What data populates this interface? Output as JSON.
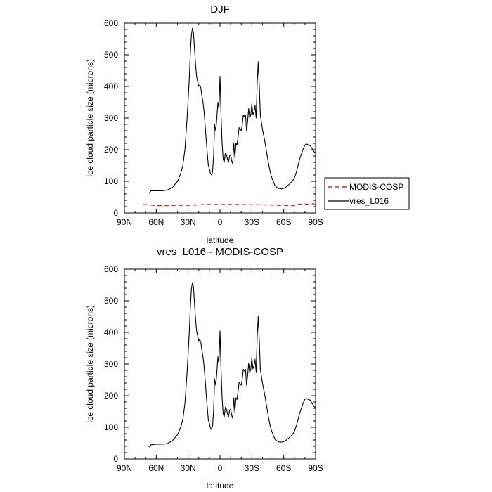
{
  "chart_data": [
    {
      "type": "line",
      "title": "DJF",
      "xlabel": "latitude",
      "ylabel": "Ice cloud particle size (microns)",
      "xlim": [
        -90,
        90
      ],
      "ylim": [
        0,
        600
      ],
      "x_ticks": [
        -90,
        -60,
        -30,
        0,
        30,
        60,
        90
      ],
      "x_tick_labels": [
        "90N",
        "60N",
        "30N",
        "0",
        "30S",
        "60S",
        "90S"
      ],
      "y_ticks": [
        0,
        100,
        200,
        300,
        400,
        500,
        600
      ],
      "y_tick_labels": [
        "0",
        "100",
        "200",
        "300",
        "400",
        "500",
        "600"
      ],
      "legend": {
        "placement": "right"
      },
      "grid": false,
      "series": [
        {
          "name": "MODIS-COSP",
          "color": "#e8251f",
          "dash": "dashed",
          "x": [
            -72,
            -65,
            -60,
            -55,
            -50,
            -45,
            -40,
            -35,
            -30,
            -25,
            -20,
            -15,
            -10,
            -5,
            0,
            5,
            10,
            15,
            20,
            25,
            30,
            35,
            40,
            45,
            50,
            55,
            60,
            65,
            70,
            73,
            76,
            79,
            82,
            85,
            88,
            90
          ],
          "y": [
            27,
            25,
            23,
            23,
            23,
            24,
            24,
            24,
            24,
            25,
            25,
            27,
            27,
            27,
            27,
            27,
            27,
            27,
            27,
            26,
            26,
            26,
            26,
            25,
            25,
            24,
            24,
            23,
            23,
            27,
            28,
            28,
            28,
            27,
            30,
            25
          ]
        },
        {
          "name": "vres_L016",
          "color": "#000000",
          "dash": "solid",
          "x": [
            -67,
            -65,
            -60,
            -55,
            -50,
            -45,
            -40,
            -37,
            -35,
            -33,
            -31,
            -29,
            -28,
            -27,
            -26,
            -25,
            -24,
            -23,
            -22,
            -21,
            -20,
            -19,
            -18,
            -17,
            -16,
            -15,
            -14,
            -13,
            -12,
            -11,
            -10,
            -9,
            -8,
            -7,
            -6,
            -5,
            -4,
            -3,
            -2,
            -1,
            0,
            1,
            2,
            3,
            4,
            5,
            6,
            7,
            8,
            9,
            10,
            11,
            12,
            13,
            14,
            15,
            16,
            17,
            18,
            19,
            20,
            21,
            22,
            23,
            24,
            25,
            26,
            27,
            28,
            29,
            30,
            31,
            32,
            33,
            34,
            35,
            36,
            37,
            38,
            40,
            42,
            44,
            46,
            48,
            50,
            52,
            55,
            58,
            60,
            62,
            65,
            68,
            70,
            72,
            75,
            78,
            80,
            82,
            83,
            85,
            87,
            89,
            90
          ],
          "y": [
            62,
            70,
            70,
            70,
            72,
            80,
            100,
            125,
            150,
            200,
            300,
            420,
            500,
            560,
            583,
            570,
            520,
            470,
            430,
            415,
            400,
            405,
            395,
            370,
            350,
            320,
            280,
            230,
            190,
            150,
            140,
            125,
            120,
            130,
            180,
            280,
            260,
            300,
            350,
            330,
            432,
            310,
            220,
            170,
            160,
            190,
            185,
            170,
            160,
            180,
            185,
            165,
            155,
            220,
            175,
            220,
            215,
            240,
            270,
            265,
            260,
            280,
            310,
            305,
            310,
            260,
            290,
            330,
            300,
            310,
            345,
            310,
            320,
            340,
            300,
            410,
            478,
            400,
            310,
            265,
            230,
            190,
            150,
            120,
            100,
            85,
            78,
            76,
            78,
            82,
            90,
            100,
            110,
            130,
            170,
            200,
            215,
            218,
            215,
            212,
            202,
            192,
            190
          ]
        }
      ]
    },
    {
      "type": "line",
      "title": "vres_L016 - MODIS-COSP",
      "xlabel": "latitude",
      "ylabel": "Ice cloud particle size (microns)",
      "xlim": [
        -90,
        90
      ],
      "ylim": [
        0,
        600
      ],
      "x_ticks": [
        -90,
        -60,
        -30,
        0,
        30,
        60,
        90
      ],
      "x_tick_labels": [
        "90N",
        "60N",
        "30N",
        "0",
        "30S",
        "60S",
        "90S"
      ],
      "y_ticks": [
        0,
        100,
        200,
        300,
        400,
        500,
        600
      ],
      "y_tick_labels": [
        "0",
        "100",
        "200",
        "300",
        "400",
        "500",
        "600"
      ],
      "grid": false,
      "series": [
        {
          "color": "#000000",
          "dash": "solid",
          "x": [
            -67,
            -65,
            -60,
            -55,
            -50,
            -45,
            -40,
            -37,
            -35,
            -33,
            -31,
            -29,
            -28,
            -27,
            -26,
            -25,
            -24,
            -23,
            -22,
            -21,
            -20,
            -19,
            -18,
            -17,
            -16,
            -15,
            -14,
            -13,
            -12,
            -11,
            -10,
            -9,
            -8,
            -7,
            -6,
            -5,
            -4,
            -3,
            -2,
            -1,
            0,
            1,
            2,
            3,
            4,
            5,
            6,
            7,
            8,
            9,
            10,
            11,
            12,
            13,
            14,
            15,
            16,
            17,
            18,
            19,
            20,
            21,
            22,
            23,
            24,
            25,
            26,
            27,
            28,
            29,
            30,
            31,
            32,
            33,
            34,
            35,
            36,
            37,
            38,
            40,
            42,
            44,
            46,
            48,
            50,
            52,
            55,
            58,
            60,
            62,
            65,
            68,
            70,
            72,
            75,
            78,
            80,
            82,
            83,
            85,
            87,
            89,
            90
          ],
          "y": [
            38,
            45,
            47,
            47,
            48,
            57,
            77,
            100,
            125,
            175,
            275,
            395,
            475,
            535,
            557,
            545,
            493,
            443,
            403,
            388,
            373,
            378,
            368,
            343,
            323,
            293,
            253,
            203,
            163,
            123,
            113,
            98,
            93,
            103,
            153,
            253,
            233,
            273,
            323,
            303,
            405,
            283,
            193,
            143,
            133,
            163,
            158,
            143,
            133,
            153,
            158,
            138,
            128,
            193,
            148,
            193,
            188,
            213,
            243,
            238,
            233,
            253,
            283,
            278,
            283,
            233,
            263,
            303,
            273,
            283,
            320,
            285,
            295,
            315,
            275,
            385,
            452,
            375,
            285,
            240,
            205,
            165,
            125,
            95,
            76,
            61,
            54,
            53,
            55,
            59,
            67,
            77,
            87,
            106,
            144,
            174,
            189,
            191,
            188,
            186,
            174,
            164,
            165
          ]
        }
      ]
    }
  ]
}
